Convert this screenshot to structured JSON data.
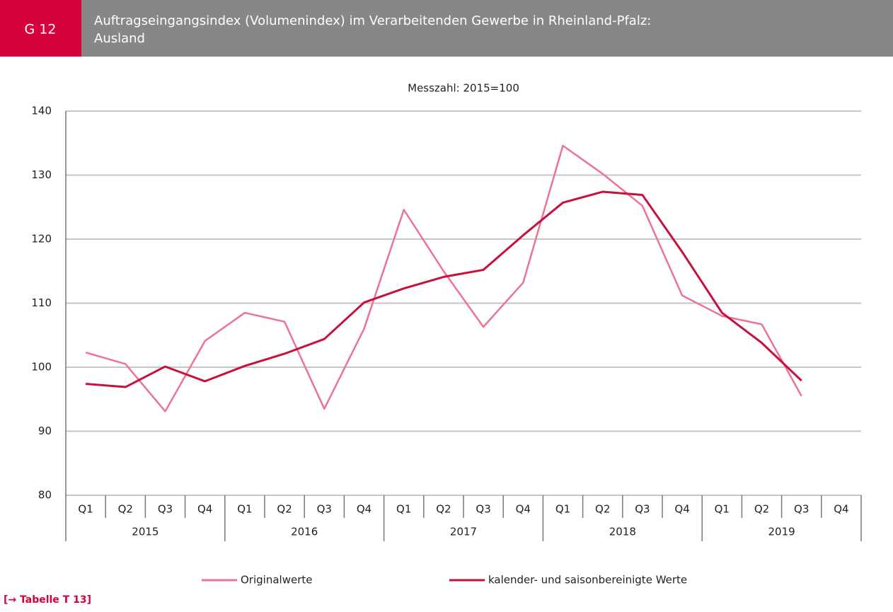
{
  "header": {
    "code": "G 12",
    "title_line1": "Auftragseingangsindex (Volumenindex) im  Verarbeitenden Gewerbe  in Rheinland-Pfalz:",
    "title_line2": "Ausland"
  },
  "chart_data": {
    "type": "line",
    "subtitle": "Messzahl: 2015=100",
    "categories": [
      "Q1",
      "Q2",
      "Q3",
      "Q4",
      "Q1",
      "Q2",
      "Q3",
      "Q4",
      "Q1",
      "Q2",
      "Q3",
      "Q4",
      "Q1",
      "Q2",
      "Q3",
      "Q4",
      "Q1",
      "Q2",
      "Q3",
      "Q4"
    ],
    "years": [
      "2015",
      "2016",
      "2017",
      "2018",
      "2019"
    ],
    "series": [
      {
        "name": "Originalwerte",
        "color": "#eb7493",
        "values": [
          102.3,
          100.5,
          93.1,
          104.1,
          108.5,
          107.1,
          93.5,
          106.0,
          124.6,
          115.0,
          106.3,
          113.2,
          134.6,
          130.2,
          125.2,
          111.2,
          108.0,
          106.7,
          95.5,
          null
        ]
      },
      {
        "name": "kalender- und saisonbereinigte Werte",
        "color": "#c8103c",
        "values": [
          97.4,
          96.9,
          100.1,
          97.8,
          100.2,
          102.1,
          104.4,
          110.1,
          112.3,
          114.1,
          115.2,
          120.6,
          125.7,
          127.4,
          126.9,
          118.0,
          108.5,
          103.8,
          97.9,
          null
        ]
      }
    ],
    "ylim": [
      80,
      140
    ],
    "yticks": [
      80,
      90,
      100,
      110,
      120,
      130,
      140
    ],
    "grid": true
  },
  "footer": {
    "link": "[→ Tabelle T 13]"
  }
}
